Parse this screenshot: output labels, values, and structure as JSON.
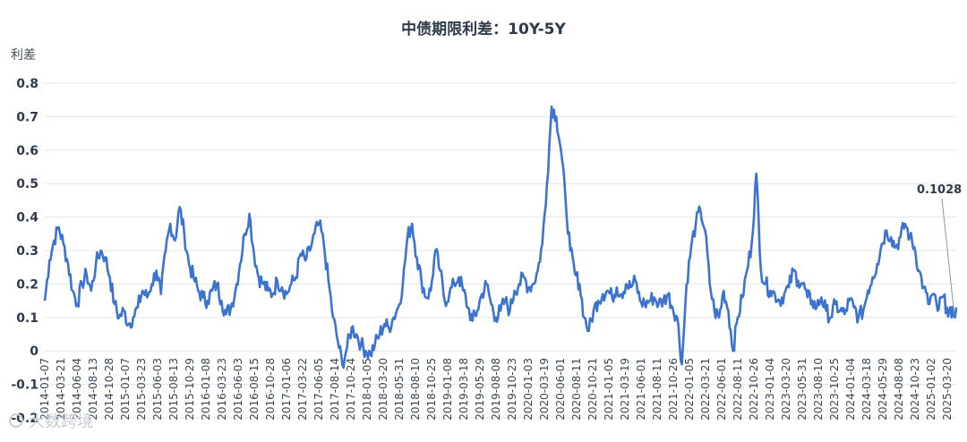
{
  "chart_data": {
    "type": "line",
    "title": "中债期限利差：10Y-5Y",
    "ylabel": "利差",
    "xlabel": "",
    "ylim": [
      -0.2,
      0.8
    ],
    "yticks": [
      "0.8",
      "0.7",
      "0.6",
      "0.5",
      "0.4",
      "0.3",
      "0.2",
      "0.1",
      "0",
      "-0.1",
      "-0.2"
    ],
    "grid": true,
    "x_tick_labels": [
      "2014-01-07",
      "2014-03-21",
      "2014-06-04",
      "2014-08-13",
      "2014-10-28",
      "2015-01-07",
      "2015-03-23",
      "2015-06-03",
      "2015-08-13",
      "2015-10-29",
      "2016-01-08",
      "2016-03-23",
      "2016-06-03",
      "2016-08-15",
      "2016-10-28",
      "2017-01-06",
      "2017-03-22",
      "2017-06-05",
      "2017-08-14",
      "2017-10-24",
      "2018-01-05",
      "2018-03-20",
      "2018-05-31",
      "2018-08-10",
      "2018-10-25",
      "2019-01-08",
      "2019-03-18",
      "2019-05-29",
      "2019-08-08",
      "2019-10-23",
      "2020-01-03",
      "2020-03-19",
      "2020-06-01",
      "2020-08-11",
      "2020-10-21",
      "2021-01-05",
      "2021-03-19",
      "2021-06-01",
      "2021-08-11",
      "2021-10-26",
      "2022-01-05",
      "2022-03-21",
      "2022-06-01",
      "2022-08-11",
      "2022-10-26",
      "2023-01-04",
      "2023-03-20",
      "2023-05-31",
      "2023-08-10",
      "2023-10-25",
      "2024-01-04",
      "2024-03-18",
      "2024-05-29",
      "2024-08-08",
      "2024-10-23",
      "2025-01-02",
      "2025-03-20"
    ],
    "series": [
      {
        "name": "",
        "values": [
          0.15,
          0.27,
          0.33,
          0.37,
          0.32,
          0.26,
          0.18,
          0.14,
          0.2,
          0.23,
          0.18,
          0.26,
          0.3,
          0.28,
          0.22,
          0.14,
          0.1,
          0.12,
          0.08,
          0.1,
          0.13,
          0.18,
          0.16,
          0.2,
          0.24,
          0.17,
          0.3,
          0.38,
          0.33,
          0.43,
          0.35,
          0.26,
          0.22,
          0.18,
          0.16,
          0.15,
          0.18,
          0.2,
          0.15,
          0.11,
          0.13,
          0.18,
          0.26,
          0.35,
          0.41,
          0.29,
          0.22,
          0.2,
          0.18,
          0.17,
          0.21,
          0.19,
          0.17,
          0.2,
          0.22,
          0.29,
          0.27,
          0.3,
          0.35,
          0.38,
          0.32,
          0.21,
          0.1,
          0.03,
          -0.04,
          0.01,
          0.07,
          0.05,
          0.02,
          0.0,
          -0.01,
          0.02,
          0.05,
          0.08,
          0.07,
          0.1,
          0.13,
          0.2,
          0.34,
          0.38,
          0.28,
          0.21,
          0.16,
          0.18,
          0.3,
          0.24,
          0.15,
          0.17,
          0.2,
          0.22,
          0.18,
          0.13,
          0.09,
          0.12,
          0.17,
          0.2,
          0.14,
          0.1,
          0.12,
          0.15,
          0.12,
          0.18,
          0.2,
          0.22,
          0.19,
          0.2,
          0.24,
          0.32,
          0.5,
          0.73,
          0.7,
          0.6,
          0.45,
          0.3,
          0.23,
          0.2,
          0.1,
          0.06,
          0.12,
          0.15,
          0.17,
          0.18,
          0.16,
          0.19,
          0.17,
          0.2,
          0.19,
          0.21,
          0.15,
          0.14,
          0.15,
          0.16,
          0.14,
          0.15,
          0.17,
          0.13,
          0.1,
          -0.04,
          0.2,
          0.31,
          0.38,
          0.42,
          0.36,
          0.2,
          0.12,
          0.1,
          0.18,
          0.12,
          0.0,
          0.1,
          0.16,
          0.24,
          0.32,
          0.53,
          0.24,
          0.2,
          0.18,
          0.17,
          0.15,
          0.17,
          0.19,
          0.24,
          0.21,
          0.2,
          0.16,
          0.15,
          0.13,
          0.16,
          0.12,
          0.1,
          0.14,
          0.12,
          0.11,
          0.15,
          0.13,
          0.1,
          0.12,
          0.18,
          0.22,
          0.26,
          0.32,
          0.36,
          0.34,
          0.31,
          0.34,
          0.38,
          0.34,
          0.31,
          0.24,
          0.19,
          0.14,
          0.17,
          0.12,
          0.16,
          0.13,
          0.1,
          0.13
        ]
      }
    ],
    "annotation": {
      "text": "0.1028"
    }
  },
  "watermark": {
    "text": "大数跨境"
  }
}
